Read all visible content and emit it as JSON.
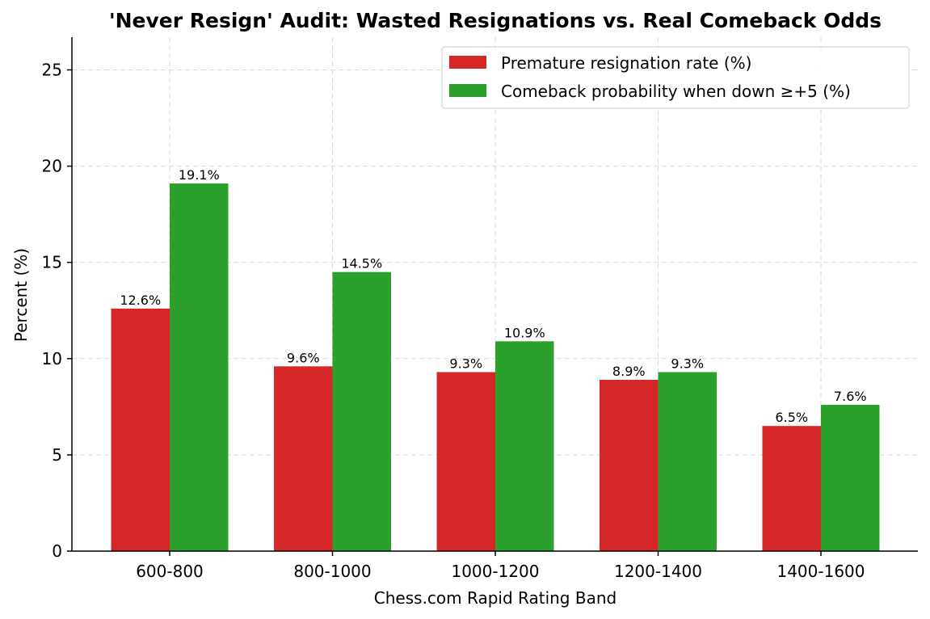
{
  "chart_data": {
    "type": "bar",
    "title": "'Never Resign' Audit: Wasted Resignations vs. Real Comeback Odds",
    "xlabel": "Chess.com Rapid Rating Band",
    "ylabel": "Percent (%)",
    "categories": [
      "600-800",
      "800-1000",
      "1000-1200",
      "1200-1400",
      "1400-1600"
    ],
    "series": [
      {
        "name": "Premature resignation rate (%)",
        "color": "#d62728",
        "values": [
          12.6,
          9.6,
          9.3,
          8.9,
          6.5
        ],
        "labels": [
          "12.6%",
          "9.6%",
          "9.3%",
          "8.9%",
          "6.5%"
        ]
      },
      {
        "name": "Comeback probability when down ≥+5 (%)",
        "color": "#2ca02c",
        "values": [
          19.1,
          14.5,
          10.9,
          9.3,
          7.6
        ],
        "labels": [
          "19.1%",
          "14.5%",
          "10.9%",
          "9.3%",
          "7.6%"
        ]
      }
    ],
    "ylim": [
      0,
      26.7
    ],
    "yticks": [
      0,
      5,
      10,
      15,
      20,
      25
    ],
    "grid": true,
    "legend_position": "top-right"
  }
}
